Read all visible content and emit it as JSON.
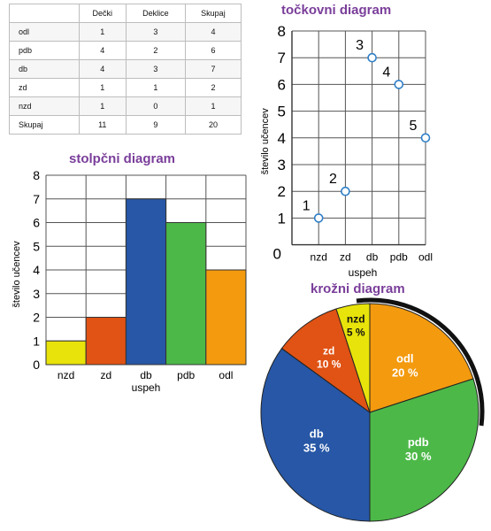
{
  "table": {
    "headers": [
      "",
      "Dečki",
      "Deklice",
      "Skupaj"
    ],
    "rows": [
      [
        "odl",
        "1",
        "3",
        "4"
      ],
      [
        "pdb",
        "4",
        "2",
        "6"
      ],
      [
        "db",
        "4",
        "3",
        "7"
      ],
      [
        "zd",
        "1",
        "1",
        "2"
      ],
      [
        "nzd",
        "1",
        "0",
        "1"
      ],
      [
        "Skupaj",
        "11",
        "9",
        "20"
      ]
    ]
  },
  "chart_data": [
    {
      "type": "bar",
      "title": "stolpčni diagram",
      "xlabel": "uspeh",
      "ylabel": "število učencev",
      "categories": [
        "nzd",
        "zd",
        "db",
        "pdb",
        "odl"
      ],
      "values": [
        1,
        2,
        7,
        6,
        4
      ],
      "colors": [
        "#e8e30a",
        "#e05314",
        "#2757a6",
        "#4cb848",
        "#f39a0e"
      ],
      "ylim": [
        0,
        8
      ],
      "yticks": [
        "0",
        "1",
        "2",
        "3",
        "4",
        "5",
        "6",
        "7",
        "8"
      ],
      "grid": true
    },
    {
      "type": "scatter",
      "title": "točkovni diagram",
      "xlabel": "uspeh",
      "ylabel": "število učencev",
      "categories": [
        "nzd",
        "zd",
        "db",
        "pdb",
        "odl"
      ],
      "values": [
        1,
        2,
        7,
        6,
        4
      ],
      "point_labels": [
        "1",
        "2",
        "3",
        "4",
        "5"
      ],
      "ylim": [
        0,
        8
      ],
      "yticks": [
        "0",
        "1",
        "2",
        "3",
        "4",
        "5",
        "6",
        "7",
        "8"
      ],
      "grid": true,
      "marker_color": "#2f7fc7"
    },
    {
      "type": "pie",
      "title": "krožni diagram",
      "slices": [
        {
          "label": "odl",
          "value": 20,
          "pct": "20 %",
          "color": "#f39a0e"
        },
        {
          "label": "pdb",
          "value": 30,
          "pct": "30 %",
          "color": "#4cb848"
        },
        {
          "label": "db",
          "value": 35,
          "pct": "35 %",
          "color": "#2757a6"
        },
        {
          "label": "zd",
          "value": 10,
          "pct": "10 %",
          "color": "#e05314"
        },
        {
          "label": "nzd",
          "value": 5,
          "pct": "5 %",
          "color": "#e8e30a"
        }
      ]
    }
  ]
}
